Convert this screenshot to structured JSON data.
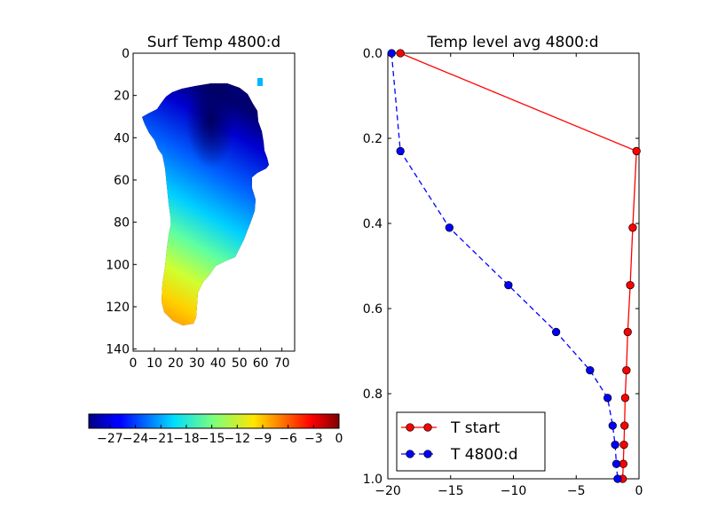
{
  "chart_data": [
    {
      "type": "heatmap",
      "title": "Surf Temp 4800:d",
      "xlabel": "",
      "ylabel": "",
      "x_ticks": [
        "0",
        "10",
        "20",
        "30",
        "40",
        "50",
        "60",
        "70"
      ],
      "y_ticks": [
        "0",
        "20",
        "40",
        "60",
        "80",
        "100",
        "120",
        "140"
      ],
      "xlim": [
        0,
        76
      ],
      "ylim": [
        141,
        0
      ],
      "colormap": "jet",
      "colorbar": {
        "range": [
          -29.5,
          0
        ],
        "ticks": [
          "−27",
          "−24",
          "−21",
          "−18",
          "−15",
          "−12",
          "−9",
          "−6",
          "−3",
          "0"
        ]
      }
    },
    {
      "type": "line",
      "title": "Temp level avg 4800:d",
      "xlabel": "",
      "ylabel": "",
      "xlim": [
        -20,
        0
      ],
      "ylim": [
        1.0,
        0.0
      ],
      "x_ticks": [
        "−20",
        "−15",
        "−10",
        "−5",
        "0"
      ],
      "y_ticks": [
        "0.0",
        "0.2",
        "0.4",
        "0.6",
        "0.8",
        "1.0"
      ],
      "legend_position": "lower-left",
      "series": [
        {
          "name": "T start",
          "color": "#ff0000",
          "style": "solid",
          "points": [
            [
              -19.0,
              0.0
            ],
            [
              -0.2,
              0.23
            ],
            [
              -0.5,
              0.41
            ],
            [
              -0.7,
              0.545
            ],
            [
              -0.9,
              0.655
            ],
            [
              -1.0,
              0.745
            ],
            [
              -1.1,
              0.81
            ],
            [
              -1.15,
              0.875
            ],
            [
              -1.2,
              0.92
            ],
            [
              -1.25,
              0.965
            ],
            [
              -1.3,
              1.0
            ]
          ]
        },
        {
          "name": "T 4800:d",
          "color": "#0000ff",
          "style": "dashed",
          "points": [
            [
              -19.7,
              0.0
            ],
            [
              -19.0,
              0.23
            ],
            [
              -15.1,
              0.41
            ],
            [
              -10.4,
              0.545
            ],
            [
              -6.6,
              0.655
            ],
            [
              -3.9,
              0.745
            ],
            [
              -2.5,
              0.81
            ],
            [
              -2.1,
              0.875
            ],
            [
              -1.9,
              0.92
            ],
            [
              -1.8,
              0.965
            ],
            [
              -1.7,
              1.0
            ]
          ]
        }
      ]
    }
  ]
}
